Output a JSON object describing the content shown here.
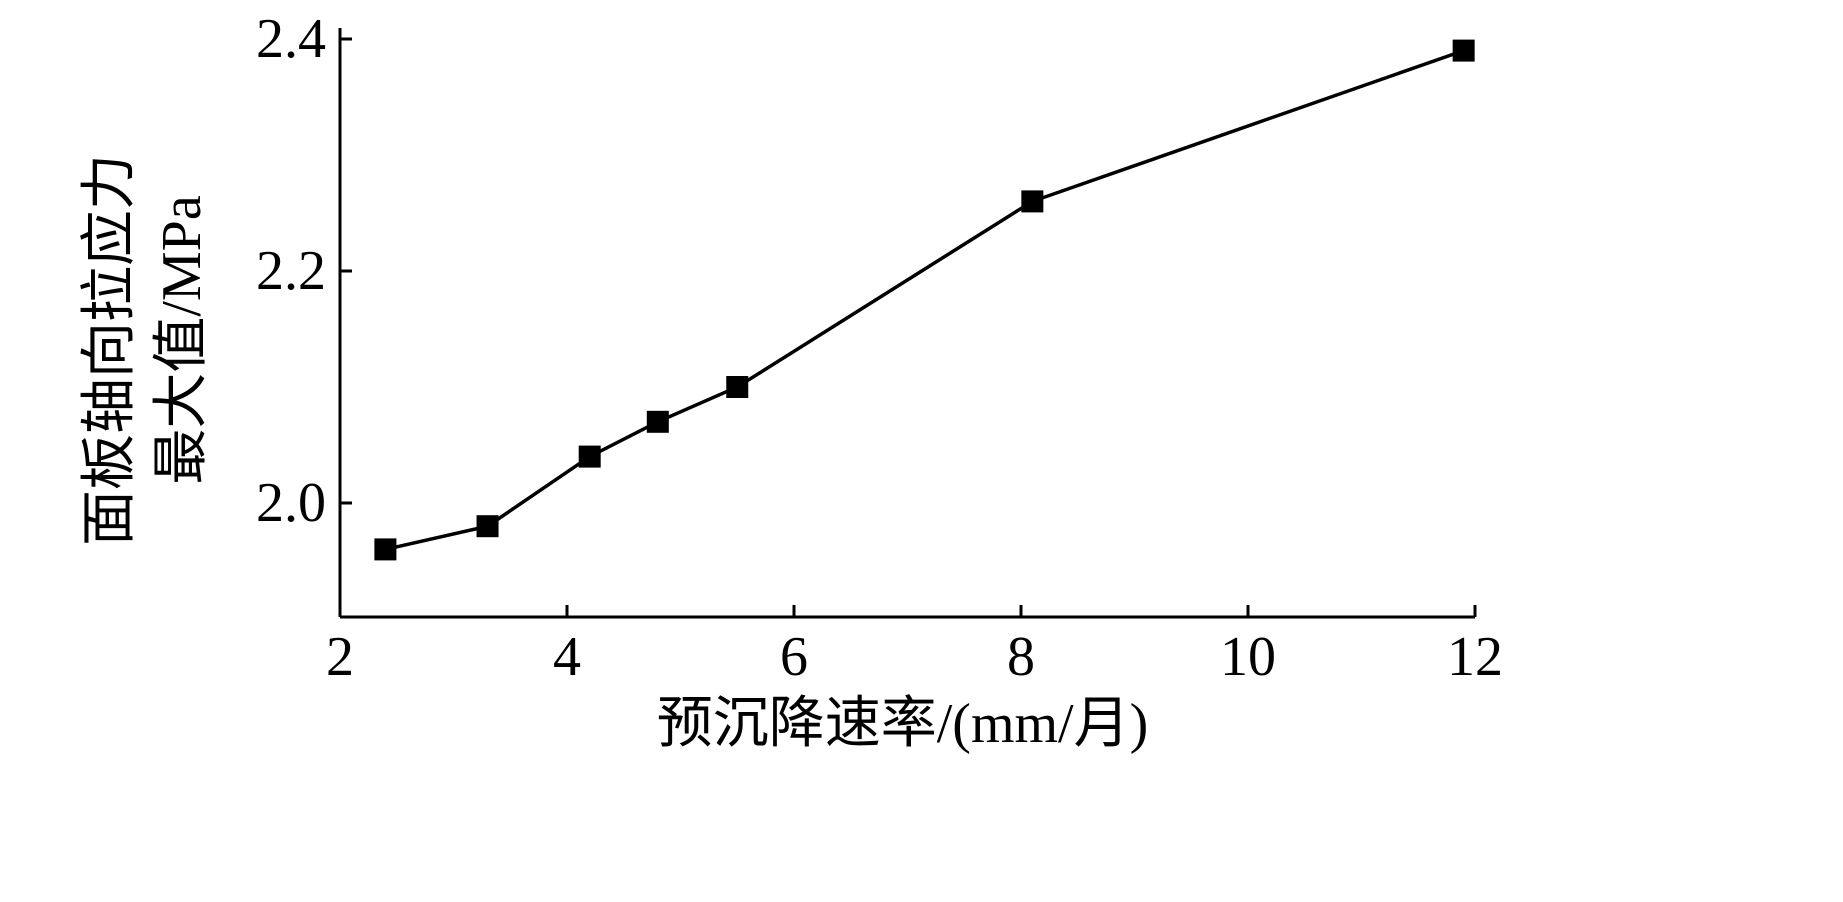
{
  "chart_data": {
    "type": "line",
    "title": "",
    "xlabel": "预沉降速率/(mm/月)",
    "ylabel_lines": [
      "面板轴向拉应力",
      "最大值/MPa"
    ],
    "xlim": [
      2,
      12
    ],
    "ylim": [
      1.9,
      2.4
    ],
    "xticks": [
      2,
      4,
      6,
      8,
      10,
      12
    ],
    "xtick_labels": [
      "2",
      "4",
      "6",
      "8",
      "10",
      "12"
    ],
    "yticks": [
      2.0,
      2.2,
      2.4
    ],
    "ytick_labels": [
      "2.0",
      "2.2",
      "2.4"
    ],
    "grid": false,
    "legend": "none",
    "marker": "filled-square",
    "colors": {
      "line": "#000000",
      "marker": "#000000",
      "axis": "#000000"
    },
    "series": [
      {
        "x": [
          2.4,
          3.3,
          4.2,
          4.8,
          5.5,
          8.1,
          11.9
        ],
        "y": [
          1.96,
          1.98,
          2.04,
          2.07,
          2.1,
          2.26,
          2.39
        ]
      }
    ]
  }
}
